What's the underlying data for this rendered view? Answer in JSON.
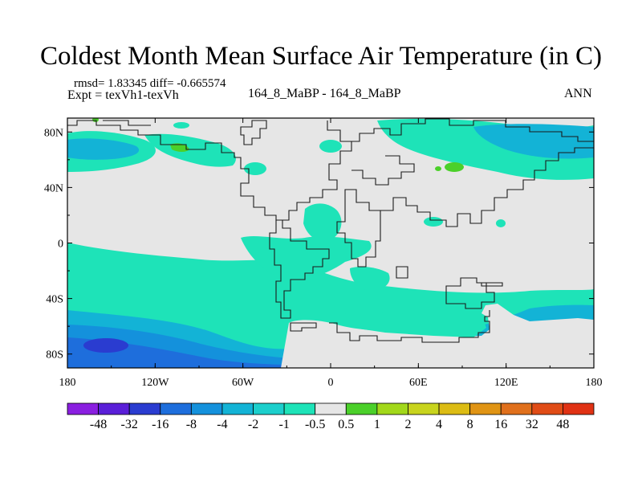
{
  "chart_data": {
    "type": "heatmap",
    "title": "Coldest Month Mean Surface Air Temperature (in C)",
    "stats": {
      "rmsd": "rmsd= 1.83345",
      "diff": "diff= -0.665574"
    },
    "experiment": "Expt = texVh1-texVh",
    "comparison": "164_8_MaBP - 164_8_MaBP",
    "season": "ANN",
    "x_ticks": [
      "180",
      "120W",
      "60W",
      "0",
      "60E",
      "120E",
      "180"
    ],
    "x_tick_values": [
      -180,
      -120,
      -60,
      0,
      60,
      120,
      180
    ],
    "y_ticks": [
      "80N",
      "40N",
      "0",
      "40S",
      "80S"
    ],
    "y_tick_values": [
      80,
      40,
      0,
      -40,
      -80
    ],
    "xlim": [
      -180,
      180
    ],
    "ylim": [
      -90,
      90
    ],
    "colorbar": {
      "labels": [
        "-48",
        "-32",
        "-16",
        "-8",
        "-4",
        "-2",
        "-1",
        "-0.5",
        "0.5",
        "1",
        "2",
        "4",
        "8",
        "16",
        "32",
        "48"
      ],
      "colors": [
        "#8a1fe0",
        "#5a1fd8",
        "#2a3cd0",
        "#1e6edc",
        "#1491dc",
        "#13b3d6",
        "#1ccfcc",
        "#1ee3b8",
        "#e6e6e6",
        "#4bd02a",
        "#a2d81a",
        "#c8d41e",
        "#dcbc14",
        "#e09414",
        "#e0701c",
        "#e04c16",
        "#e03214"
      ]
    }
  }
}
